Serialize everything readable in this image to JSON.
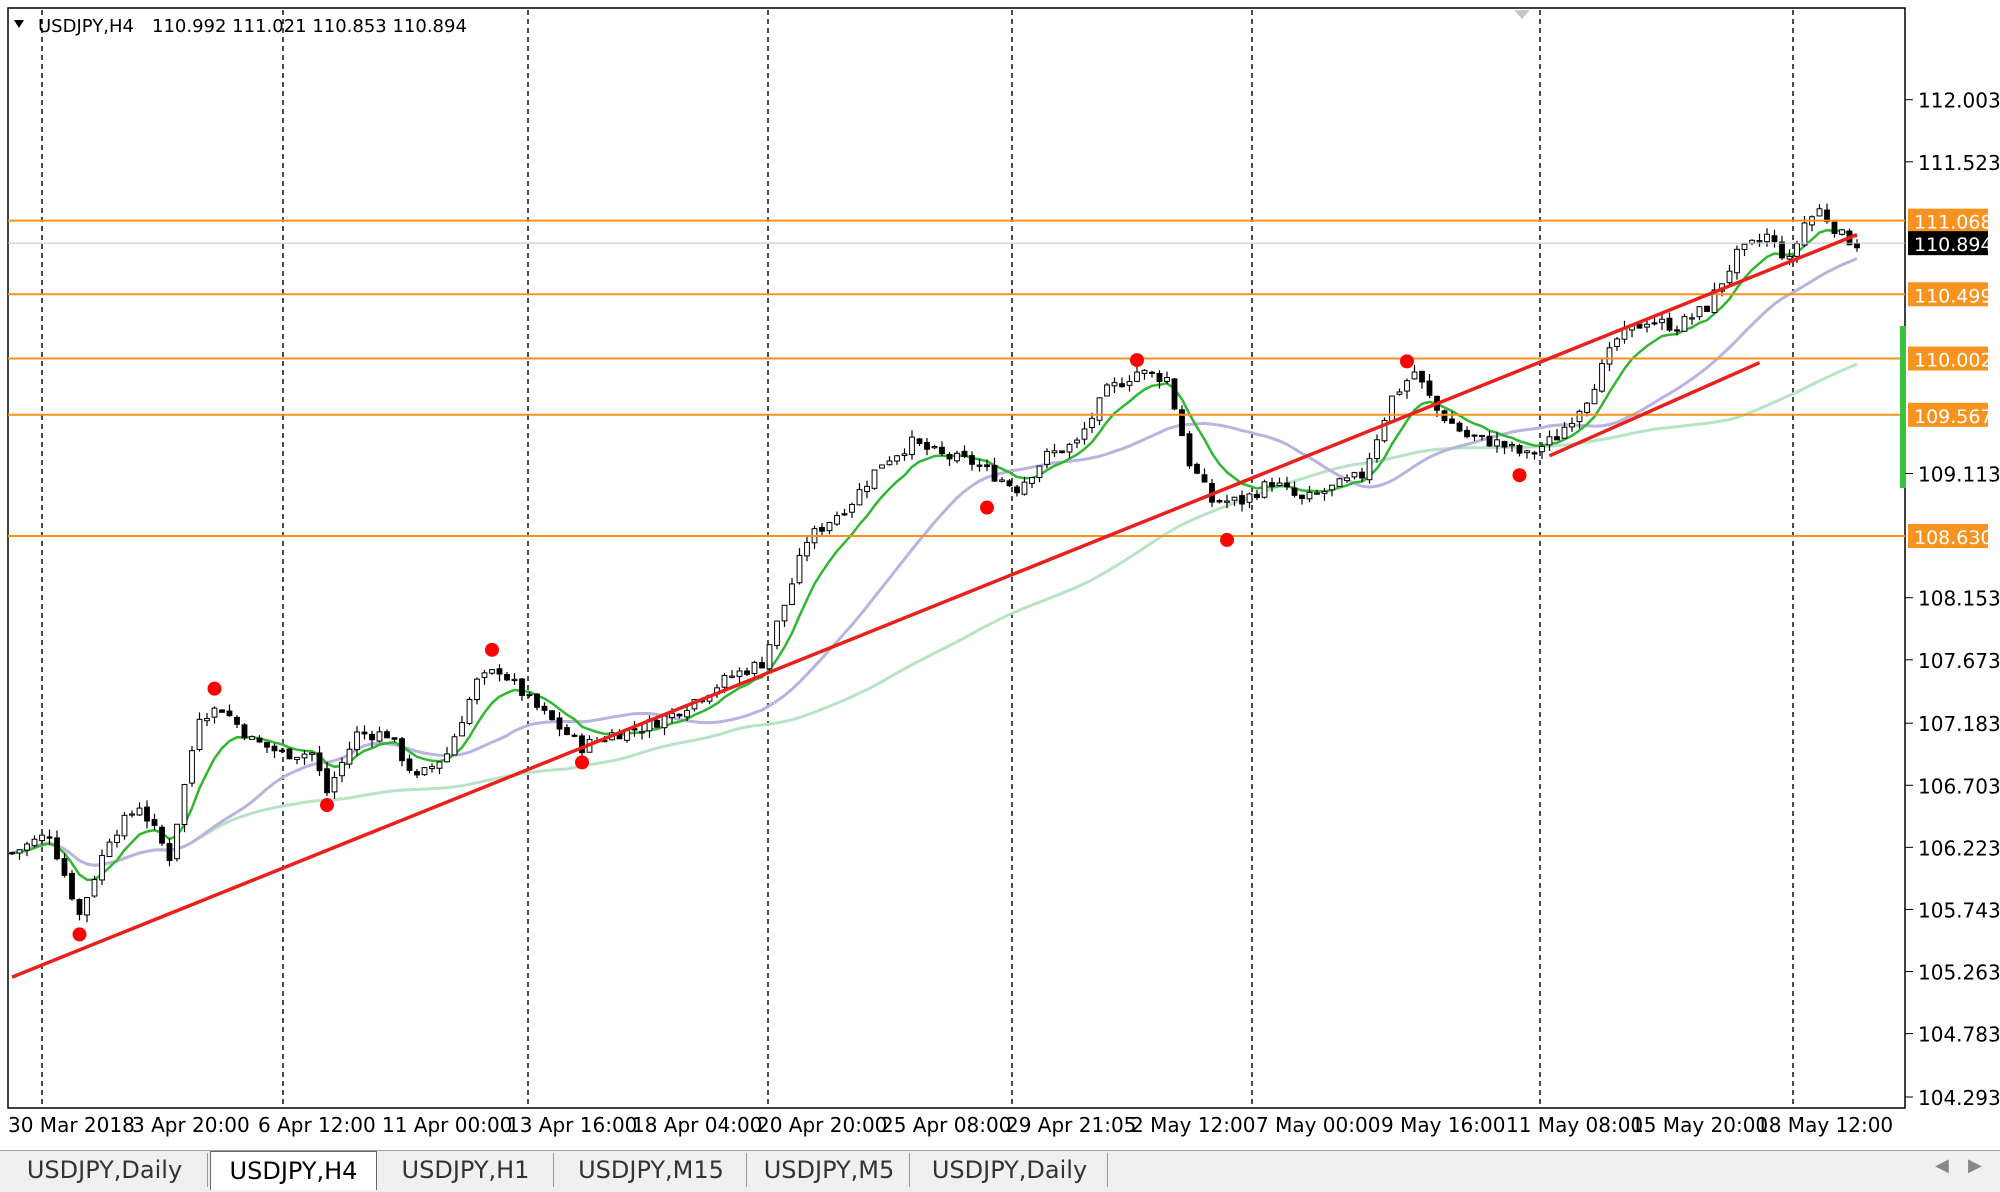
{
  "symbol_header": {
    "label": "USDJPY,H4",
    "ohlc": "110.992 111.021 110.853 110.894"
  },
  "current_price": "110.894",
  "horizontal_levels": [
    "111.068",
    "110.499",
    "110.002",
    "109.567",
    "108.630"
  ],
  "tabs": [
    {
      "label": "USDJPY,Daily",
      "active": false
    },
    {
      "label": "USDJPY,H4",
      "active": true
    },
    {
      "label": "USDJPY,H1",
      "active": false
    },
    {
      "label": "USDJPY,M15",
      "active": false
    },
    {
      "label": "USDJPY,M5",
      "active": false
    },
    {
      "label": "USDJPY,Daily",
      "active": false
    }
  ],
  "chart_data": {
    "type": "candlestick",
    "title": "USDJPY,H4",
    "y_ticks": [
      "112.003",
      "111.523",
      "109.113",
      "108.153",
      "107.673",
      "107.183",
      "106.703",
      "106.223",
      "105.743",
      "105.263",
      "104.783",
      "104.293"
    ],
    "ylim": [
      104.293,
      112.493
    ],
    "x_ticks": [
      "30 Mar 2018",
      "3 Apr 20:00",
      "6 Apr 12:00",
      "11 Apr 00:00",
      "13 Apr 16:00",
      "18 Apr 04:00",
      "20 Apr 20:00",
      "25 Apr 08:00",
      "29 Apr 21:05",
      "2 May 12:00",
      "7 May 00:00",
      "9 May 16:00",
      "11 May 08:00",
      "15 May 20:00",
      "18 May 12:00"
    ],
    "colors": {
      "bull_body": "#ffffff",
      "bear_body": "#000000",
      "level": "#f7931e",
      "trend": "#e8211d",
      "ma_fast": "#2fb82f",
      "ma_mid": "#b9b3e0",
      "ma_slow": "#b8e3c4",
      "marker": "#ff0000"
    },
    "grid": "vertical-dashed",
    "trendlines": [
      {
        "from": [
          0,
          105.22
        ],
        "to": [
          246,
          110.96
        ]
      },
      {
        "from": [
          205,
          109.25
        ],
        "to": [
          233,
          109.97
        ]
      }
    ],
    "swing_markers": [
      {
        "i": 9,
        "v": 105.55
      },
      {
        "i": 27,
        "v": 107.45
      },
      {
        "i": 42,
        "v": 106.55
      },
      {
        "i": 64,
        "v": 107.75
      },
      {
        "i": 76,
        "v": 106.88
      },
      {
        "i": 130,
        "v": 108.85
      },
      {
        "i": 150,
        "v": 109.99
      },
      {
        "i": 162,
        "v": 108.6
      },
      {
        "i": 186,
        "v": 109.98
      },
      {
        "i": 201,
        "v": 109.1
      }
    ],
    "anchors": [
      [
        0,
        106.18
      ],
      [
        5,
        106.33
      ],
      [
        9,
        105.7
      ],
      [
        13,
        106.3
      ],
      [
        17,
        106.55
      ],
      [
        21,
        106.15
      ],
      [
        25,
        107.25
      ],
      [
        28,
        107.3
      ],
      [
        32,
        107.05
      ],
      [
        36,
        106.95
      ],
      [
        40,
        106.95
      ],
      [
        42,
        106.65
      ],
      [
        46,
        107.1
      ],
      [
        50,
        107.1
      ],
      [
        54,
        106.75
      ],
      [
        58,
        106.95
      ],
      [
        62,
        107.5
      ],
      [
        65,
        107.6
      ],
      [
        70,
        107.3
      ],
      [
        76,
        107.0
      ],
      [
        80,
        107.1
      ],
      [
        84,
        107.15
      ],
      [
        88,
        107.25
      ],
      [
        92,
        107.4
      ],
      [
        96,
        107.55
      ],
      [
        100,
        107.65
      ],
      [
        103,
        108.1
      ],
      [
        106,
        108.6
      ],
      [
        112,
        108.9
      ],
      [
        116,
        109.2
      ],
      [
        120,
        109.35
      ],
      [
        124,
        109.25
      ],
      [
        128,
        109.2
      ],
      [
        131,
        109.1
      ],
      [
        134,
        109.0
      ],
      [
        138,
        109.25
      ],
      [
        142,
        109.35
      ],
      [
        146,
        109.75
      ],
      [
        150,
        109.9
      ],
      [
        154,
        109.85
      ],
      [
        157,
        109.2
      ],
      [
        160,
        108.9
      ],
      [
        164,
        108.9
      ],
      [
        168,
        109.05
      ],
      [
        172,
        108.9
      ],
      [
        176,
        109.0
      ],
      [
        180,
        109.1
      ],
      [
        184,
        109.7
      ],
      [
        187,
        109.9
      ],
      [
        190,
        109.6
      ],
      [
        194,
        109.4
      ],
      [
        198,
        109.35
      ],
      [
        202,
        109.25
      ],
      [
        206,
        109.4
      ],
      [
        210,
        109.7
      ],
      [
        214,
        110.15
      ],
      [
        218,
        110.3
      ],
      [
        222,
        110.25
      ],
      [
        226,
        110.4
      ],
      [
        230,
        110.8
      ],
      [
        234,
        110.95
      ],
      [
        237,
        110.75
      ],
      [
        239,
        111.05
      ],
      [
        241,
        111.15
      ],
      [
        244,
        110.95
      ],
      [
        246,
        110.89
      ]
    ]
  }
}
